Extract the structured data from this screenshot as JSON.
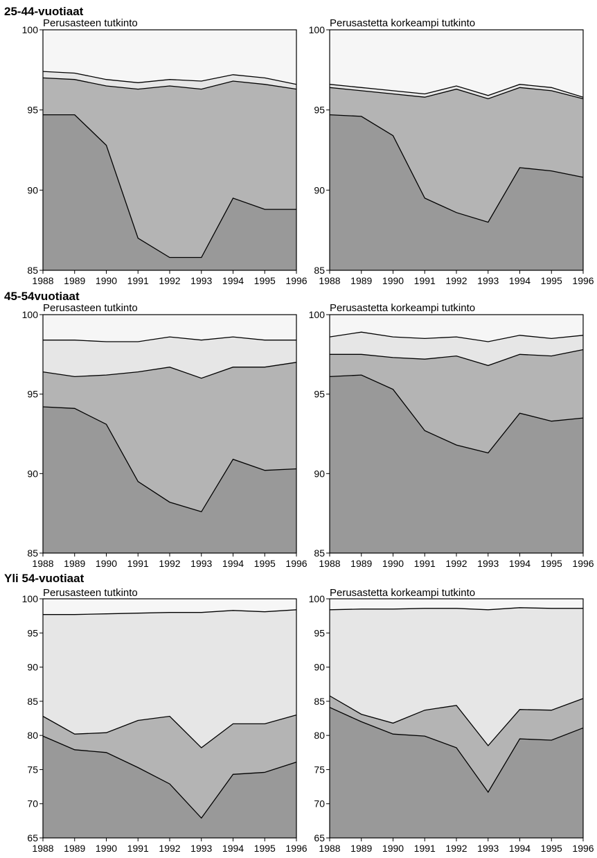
{
  "layers": {
    "colors": [
      "#999999",
      "#b4b4b4",
      "#e6e6e6",
      "#f6f6f6"
    ]
  },
  "sections": [
    {
      "title": "25-44-vuotiaat",
      "panels": [
        {
          "title": "Perusasteen tutkinto",
          "ylim": [
            85,
            100
          ],
          "yticks": [
            "85",
            "90",
            "95",
            "100"
          ],
          "xticks": [
            "1988",
            "1989",
            "1990",
            "1991",
            "1992",
            "1993",
            "1994",
            "1995",
            "1996"
          ],
          "x": [
            1988,
            1989,
            1990,
            1991,
            1992,
            1993,
            1994,
            1995,
            1996
          ],
          "boundaries": [
            [
              94.7,
              94.7,
              92.8,
              87.0,
              85.8,
              85.8,
              89.5,
              88.8,
              88.8
            ],
            [
              97.0,
              96.9,
              96.5,
              96.3,
              96.5,
              96.3,
              96.8,
              96.6,
              96.3
            ],
            [
              97.4,
              97.3,
              96.9,
              96.7,
              96.9,
              96.8,
              97.2,
              97.0,
              96.6
            ]
          ]
        },
        {
          "title": "Perusastetta korkeampi tutkinto",
          "ylim": [
            85,
            100
          ],
          "yticks": [
            "85",
            "90",
            "95",
            "100"
          ],
          "xticks": [
            "1988",
            "1989",
            "1990",
            "1991",
            "1992",
            "1993",
            "1994",
            "1995",
            "1996"
          ],
          "x": [
            1988,
            1989,
            1990,
            1991,
            1992,
            1993,
            1994,
            1995,
            1996
          ],
          "boundaries": [
            [
              94.7,
              94.6,
              93.4,
              89.5,
              88.6,
              88.0,
              91.4,
              91.2,
              90.8
            ],
            [
              96.4,
              96.2,
              96.0,
              95.8,
              96.3,
              95.7,
              96.4,
              96.2,
              95.7
            ],
            [
              96.6,
              96.4,
              96.2,
              96.0,
              96.5,
              95.9,
              96.6,
              96.4,
              95.8
            ]
          ]
        }
      ]
    },
    {
      "title": "45-54vuotiaat",
      "panels": [
        {
          "title": "Perusasteen tutkinto",
          "ylim": [
            85,
            100
          ],
          "yticks": [
            "85",
            "90",
            "95",
            "100"
          ],
          "xticks": [
            "1988",
            "1989",
            "1990",
            "1991",
            "1992",
            "1993",
            "1994",
            "1995",
            "1996"
          ],
          "x": [
            1988,
            1989,
            1990,
            1991,
            1992,
            1993,
            1994,
            1995,
            1996
          ],
          "boundaries": [
            [
              94.2,
              94.1,
              93.1,
              89.5,
              88.2,
              87.6,
              90.9,
              90.2,
              90.3
            ],
            [
              96.4,
              96.1,
              96.2,
              96.4,
              96.7,
              96.0,
              96.7,
              96.7,
              97.0
            ],
            [
              98.4,
              98.4,
              98.3,
              98.3,
              98.6,
              98.4,
              98.6,
              98.4,
              98.4
            ]
          ]
        },
        {
          "title": "Perusastetta korkeampi tutkinto",
          "ylim": [
            85,
            100
          ],
          "yticks": [
            "85",
            "90",
            "95",
            "100"
          ],
          "xticks": [
            "1988",
            "1989",
            "1990",
            "1991",
            "1992",
            "1993",
            "1994",
            "1995",
            "1996"
          ],
          "x": [
            1988,
            1989,
            1990,
            1991,
            1992,
            1993,
            1994,
            1995,
            1996
          ],
          "boundaries": [
            [
              96.1,
              96.2,
              95.3,
              92.7,
              91.8,
              91.3,
              93.8,
              93.3,
              93.5
            ],
            [
              97.5,
              97.5,
              97.3,
              97.2,
              97.4,
              96.8,
              97.5,
              97.4,
              97.8
            ],
            [
              98.6,
              98.9,
              98.6,
              98.5,
              98.6,
              98.3,
              98.7,
              98.5,
              98.7
            ]
          ]
        }
      ]
    },
    {
      "title": "Yli 54-vuotiaat",
      "panels": [
        {
          "title": "Perusasteen tutkinto",
          "ylim": [
            65,
            100
          ],
          "yticks": [
            "65",
            "70",
            "75",
            "80",
            "85",
            "90",
            "95",
            "100"
          ],
          "xticks": [
            "1988",
            "1989",
            "1990",
            "1991",
            "1992",
            "1993",
            "1994",
            "1995",
            "1996"
          ],
          "x": [
            1988,
            1989,
            1990,
            1991,
            1992,
            1993,
            1994,
            1995,
            1996
          ],
          "boundaries": [
            [
              79.9,
              77.9,
              77.5,
              75.3,
              72.9,
              67.9,
              74.3,
              74.6,
              76.1
            ],
            [
              82.8,
              80.2,
              80.4,
              82.2,
              82.8,
              78.2,
              81.7,
              81.7,
              83.0
            ],
            [
              97.7,
              97.7,
              97.8,
              97.9,
              98.0,
              98.0,
              98.3,
              98.1,
              98.4
            ]
          ]
        },
        {
          "title": "Perusastetta korkeampi tutkinto",
          "ylim": [
            65,
            100
          ],
          "yticks": [
            "65",
            "70",
            "75",
            "80",
            "85",
            "90",
            "95",
            "100"
          ],
          "xticks": [
            "1988",
            "1989",
            "1990",
            "1991",
            "1992",
            "1993",
            "1994",
            "1995",
            "1996"
          ],
          "x": [
            1988,
            1989,
            1990,
            1991,
            1992,
            1993,
            1994,
            1995,
            1996
          ],
          "boundaries": [
            [
              84.1,
              82.0,
              80.2,
              79.9,
              78.2,
              71.7,
              79.5,
              79.3,
              81.1
            ],
            [
              85.8,
              83.1,
              81.8,
              83.7,
              84.4,
              78.5,
              83.8,
              83.7,
              85.4
            ],
            [
              98.4,
              98.5,
              98.5,
              98.6,
              98.6,
              98.4,
              98.7,
              98.6,
              98.6
            ]
          ]
        }
      ]
    }
  ],
  "chart_data": [
    {
      "type": "area",
      "title": "25-44-vuotiaat — Perusasteen tutkinto",
      "x": [
        1988,
        1989,
        1990,
        1991,
        1992,
        1993,
        1994,
        1995,
        1996
      ],
      "ylim": [
        85,
        100
      ],
      "stacked_boundaries": [
        [
          94.7,
          94.7,
          92.8,
          87.0,
          85.8,
          85.8,
          89.5,
          88.8,
          88.8
        ],
        [
          97.0,
          96.9,
          96.5,
          96.3,
          96.5,
          96.3,
          96.8,
          96.6,
          96.3
        ],
        [
          97.4,
          97.3,
          96.9,
          96.7,
          96.9,
          96.8,
          97.2,
          97.0,
          96.6
        ]
      ],
      "grid": false,
      "legend": "none"
    },
    {
      "type": "area",
      "title": "25-44-vuotiaat — Perusastetta korkeampi tutkinto",
      "x": [
        1988,
        1989,
        1990,
        1991,
        1992,
        1993,
        1994,
        1995,
        1996
      ],
      "ylim": [
        85,
        100
      ],
      "stacked_boundaries": [
        [
          94.7,
          94.6,
          93.4,
          89.5,
          88.6,
          88.0,
          91.4,
          91.2,
          90.8
        ],
        [
          96.4,
          96.2,
          96.0,
          95.8,
          96.3,
          95.7,
          96.4,
          96.2,
          95.7
        ],
        [
          96.6,
          96.4,
          96.2,
          96.0,
          96.5,
          95.9,
          96.6,
          96.4,
          95.8
        ]
      ],
      "grid": false,
      "legend": "none"
    },
    {
      "type": "area",
      "title": "45-54vuotiaat — Perusasteen tutkinto",
      "x": [
        1988,
        1989,
        1990,
        1991,
        1992,
        1993,
        1994,
        1995,
        1996
      ],
      "ylim": [
        85,
        100
      ],
      "stacked_boundaries": [
        [
          94.2,
          94.1,
          93.1,
          89.5,
          88.2,
          87.6,
          90.9,
          90.2,
          90.3
        ],
        [
          96.4,
          96.1,
          96.2,
          96.4,
          96.7,
          96.0,
          96.7,
          96.7,
          97.0
        ],
        [
          98.4,
          98.4,
          98.3,
          98.3,
          98.6,
          98.4,
          98.6,
          98.4,
          98.4
        ]
      ],
      "grid": false,
      "legend": "none"
    },
    {
      "type": "area",
      "title": "45-54vuotiaat — Perusastetta korkeampi tutkinto",
      "x": [
        1988,
        1989,
        1990,
        1991,
        1992,
        1993,
        1994,
        1995,
        1996
      ],
      "ylim": [
        85,
        100
      ],
      "stacked_boundaries": [
        [
          96.1,
          96.2,
          95.3,
          92.7,
          91.8,
          91.3,
          93.8,
          93.3,
          93.5
        ],
        [
          97.5,
          97.5,
          97.3,
          97.2,
          97.4,
          96.8,
          97.5,
          97.4,
          97.8
        ],
        [
          98.6,
          98.9,
          98.6,
          98.5,
          98.6,
          98.3,
          98.7,
          98.5,
          98.7
        ]
      ],
      "grid": false,
      "legend": "none"
    },
    {
      "type": "area",
      "title": "Yli 54-vuotiaat — Perusasteen tutkinto",
      "x": [
        1988,
        1989,
        1990,
        1991,
        1992,
        1993,
        1994,
        1995,
        1996
      ],
      "ylim": [
        65,
        100
      ],
      "stacked_boundaries": [
        [
          79.9,
          77.9,
          77.5,
          75.3,
          72.9,
          67.9,
          74.3,
          74.6,
          76.1
        ],
        [
          82.8,
          80.2,
          80.4,
          82.2,
          82.8,
          78.2,
          81.7,
          81.7,
          83.0
        ],
        [
          97.7,
          97.7,
          97.8,
          97.9,
          98.0,
          98.0,
          98.3,
          98.1,
          98.4
        ]
      ],
      "grid": false,
      "legend": "none"
    },
    {
      "type": "area",
      "title": "Yli 54-vuotiaat — Perusastetta korkeampi tutkinto",
      "x": [
        1988,
        1989,
        1990,
        1991,
        1992,
        1993,
        1994,
        1995,
        1996
      ],
      "ylim": [
        65,
        100
      ],
      "stacked_boundaries": [
        [
          84.1,
          82.0,
          80.2,
          79.9,
          78.2,
          71.7,
          79.5,
          79.3,
          81.1
        ],
        [
          85.8,
          83.1,
          81.8,
          83.7,
          84.4,
          78.5,
          83.8,
          83.7,
          85.4
        ],
        [
          98.4,
          98.5,
          98.5,
          98.6,
          98.6,
          98.4,
          98.7,
          98.6,
          98.6
        ]
      ],
      "grid": false,
      "legend": "none"
    }
  ]
}
